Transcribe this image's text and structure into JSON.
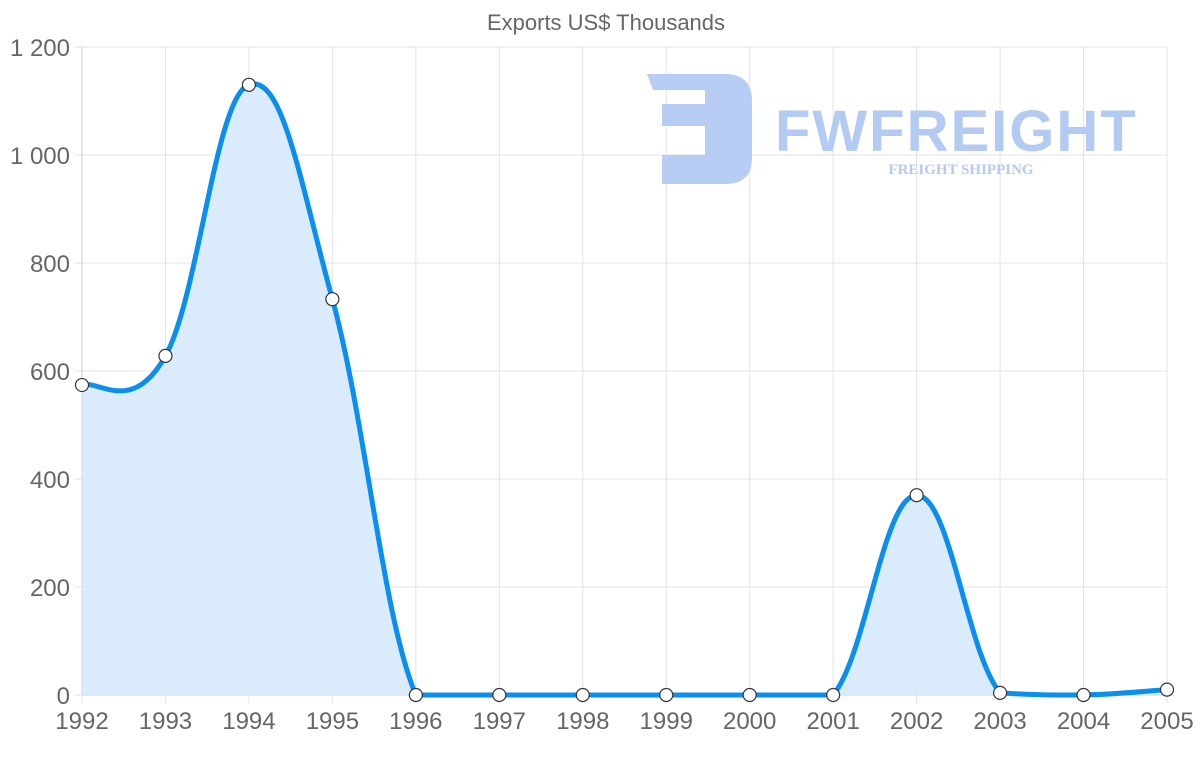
{
  "chart_data": {
    "type": "area",
    "title": "Exports US$ Thousands",
    "xlabel": "",
    "ylabel": "",
    "categories": [
      "1992",
      "1993",
      "1994",
      "1995",
      "1996",
      "1997",
      "1998",
      "1999",
      "2000",
      "2001",
      "2002",
      "2003",
      "2004",
      "2005"
    ],
    "series": [
      {
        "name": "Exports US$ Thousands",
        "values": [
          574,
          628,
          1130,
          733,
          0,
          0,
          0,
          0,
          0,
          0,
          370,
          4,
          0,
          10
        ],
        "line_color": "#0a8ff0",
        "fill_color": "#d6eafc"
      }
    ],
    "ylim": [
      0,
      1200
    ],
    "y_ticks": [
      {
        "value": 0,
        "label": "0"
      },
      {
        "value": 200,
        "label": "200"
      },
      {
        "value": 400,
        "label": "400"
      },
      {
        "value": 600,
        "label": "600"
      },
      {
        "value": 800,
        "label": "800"
      },
      {
        "value": 1000,
        "label": "1 000"
      },
      {
        "value": 1200,
        "label": "1 200"
      }
    ],
    "grid": true,
    "legend": "none"
  },
  "watermark": {
    "brand": "FWFREIGHT",
    "tagline": "FREIGHT SHIPPING",
    "color": "#b3caf2"
  }
}
